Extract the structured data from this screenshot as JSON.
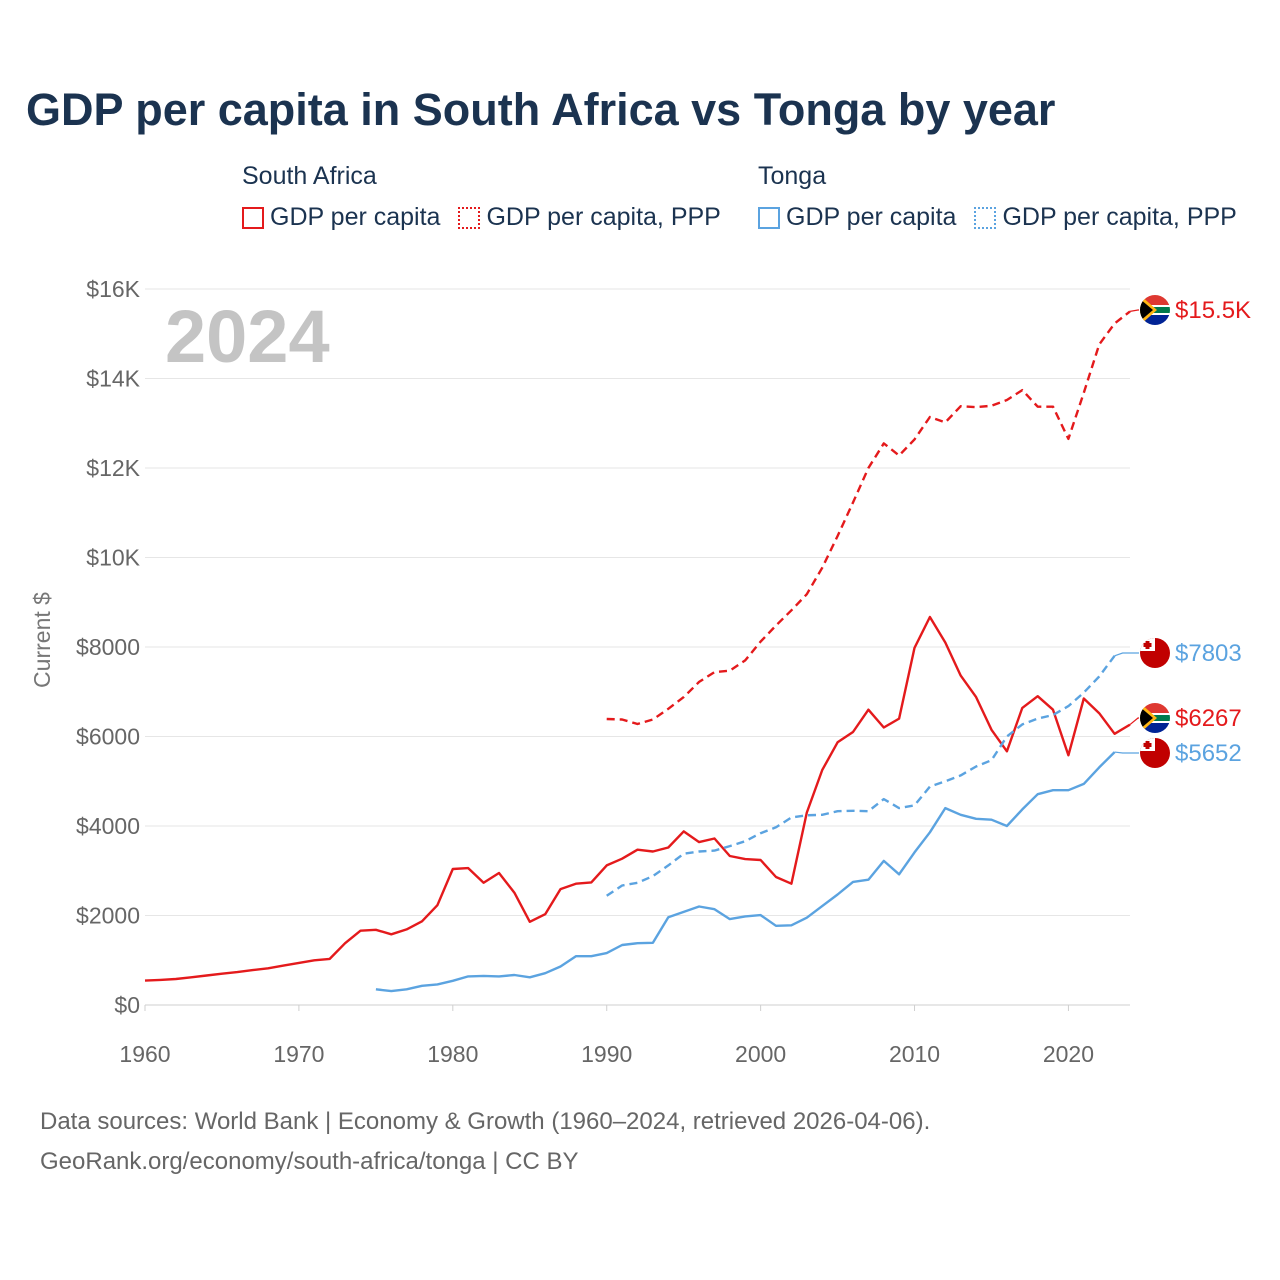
{
  "chart_data": {
    "type": "line",
    "title": "GDP per capita in South Africa vs Tonga by year",
    "ylabel": "Current $",
    "xlabel": "",
    "xlim": [
      1960,
      2024
    ],
    "ylim": [
      0,
      16000
    ],
    "year_label": "2024",
    "x_ticks": [
      {
        "value": 1960,
        "label": "1960"
      },
      {
        "value": 1970,
        "label": "1970"
      },
      {
        "value": 1980,
        "label": "1980"
      },
      {
        "value": 1990,
        "label": "1990"
      },
      {
        "value": 2000,
        "label": "2000"
      },
      {
        "value": 2010,
        "label": "2010"
      },
      {
        "value": 2020,
        "label": "2020"
      }
    ],
    "y_ticks": [
      {
        "value": 0,
        "label": "$0"
      },
      {
        "value": 2000,
        "label": "$2000"
      },
      {
        "value": 4000,
        "label": "$4000"
      },
      {
        "value": 6000,
        "label": "$6000"
      },
      {
        "value": 8000,
        "label": "$8000"
      },
      {
        "value": 10000,
        "label": "$10K"
      },
      {
        "value": 12000,
        "label": "$12K"
      },
      {
        "value": 14000,
        "label": "$14K"
      },
      {
        "value": 16000,
        "label": "$16K"
      }
    ],
    "legend": {
      "groups": [
        {
          "title": "South Africa",
          "items": [
            {
              "label": "GDP per capita",
              "style": "solid",
              "color": "#e41a1c"
            },
            {
              "label": "GDP per capita, PPP",
              "style": "dotted",
              "color": "#e41a1c"
            }
          ]
        },
        {
          "title": "Tonga",
          "items": [
            {
              "label": "GDP per capita",
              "style": "solid",
              "color": "#5ba3e0"
            },
            {
              "label": "GDP per capita, PPP",
              "style": "dotted",
              "color": "#5ba3e0"
            }
          ]
        }
      ]
    },
    "series": [
      {
        "name": "South Africa GDP per capita",
        "country": "South Africa",
        "flag": "south-africa",
        "color": "#e41a1c",
        "dash": false,
        "end_label": "$6267",
        "x": [
          1960,
          1961,
          1962,
          1963,
          1964,
          1965,
          1966,
          1967,
          1968,
          1969,
          1970,
          1971,
          1972,
          1973,
          1974,
          1975,
          1976,
          1977,
          1978,
          1979,
          1980,
          1981,
          1982,
          1983,
          1984,
          1985,
          1986,
          1987,
          1988,
          1989,
          1990,
          1991,
          1992,
          1993,
          1994,
          1995,
          1996,
          1997,
          1998,
          1999,
          2000,
          2001,
          2002,
          2003,
          2004,
          2005,
          2006,
          2007,
          2008,
          2009,
          2010,
          2011,
          2012,
          2013,
          2014,
          2015,
          2016,
          2017,
          2018,
          2019,
          2020,
          2021,
          2022,
          2023,
          2024
        ],
        "values": [
          545,
          560,
          580,
          620,
          660,
          700,
          735,
          780,
          820,
          880,
          940,
          1000,
          1030,
          1380,
          1660,
          1680,
          1580,
          1690,
          1870,
          2230,
          3040,
          3060,
          2730,
          2950,
          2510,
          1860,
          2030,
          2590,
          2710,
          2740,
          3120,
          3270,
          3470,
          3430,
          3520,
          3880,
          3640,
          3720,
          3330,
          3260,
          3240,
          2860,
          2710,
          4300,
          5250,
          5870,
          6100,
          6600,
          6200,
          6400,
          7980,
          8670,
          8100,
          7360,
          6880,
          6150,
          5670,
          6640,
          6900,
          6600,
          5580,
          6850,
          6520,
          6060,
          6267
        ]
      },
      {
        "name": "South Africa GDP per capita, PPP",
        "country": "South Africa",
        "flag": "south-africa",
        "color": "#e41a1c",
        "dash": true,
        "end_label": "$15.5K",
        "x": [
          1990,
          1991,
          1992,
          1993,
          1994,
          1995,
          1996,
          1997,
          1998,
          1999,
          2000,
          2001,
          2002,
          2003,
          2004,
          2005,
          2006,
          2007,
          2008,
          2009,
          2010,
          2011,
          2012,
          2013,
          2014,
          2015,
          2016,
          2017,
          2018,
          2019,
          2020,
          2021,
          2022,
          2023,
          2024
        ],
        "values": [
          6390,
          6380,
          6280,
          6380,
          6620,
          6880,
          7220,
          7440,
          7470,
          7700,
          8120,
          8480,
          8820,
          9180,
          9770,
          10480,
          11230,
          12000,
          12550,
          12280,
          12640,
          13140,
          13020,
          13380,
          13360,
          13390,
          13520,
          13740,
          13370,
          13370,
          12650,
          13680,
          14760,
          15230,
          15500
        ]
      },
      {
        "name": "Tonga GDP per capita",
        "country": "Tonga",
        "flag": "tonga",
        "color": "#5ba3e0",
        "dash": false,
        "end_label": "$5652",
        "x": [
          1975,
          1976,
          1977,
          1978,
          1979,
          1980,
          1981,
          1982,
          1983,
          1984,
          1985,
          1986,
          1987,
          1988,
          1989,
          1990,
          1991,
          1992,
          1993,
          1994,
          1995,
          1996,
          1997,
          1998,
          1999,
          2000,
          2001,
          2002,
          2003,
          2004,
          2005,
          2006,
          2007,
          2008,
          2009,
          2010,
          2011,
          2012,
          2013,
          2014,
          2015,
          2016,
          2017,
          2018,
          2019,
          2020,
          2021,
          2022,
          2023
        ],
        "values": [
          350,
          310,
          350,
          430,
          460,
          540,
          640,
          650,
          640,
          670,
          620,
          710,
          860,
          1090,
          1090,
          1160,
          1340,
          1380,
          1390,
          1960,
          2080,
          2200,
          2140,
          1920,
          1980,
          2010,
          1770,
          1780,
          1950,
          2210,
          2470,
          2750,
          2800,
          3220,
          2920,
          3410,
          3860,
          4400,
          4250,
          4160,
          4140,
          4000,
          4370,
          4710,
          4800,
          4800,
          4940,
          5310,
          5652
        ]
      },
      {
        "name": "Tonga GDP per capita, PPP",
        "country": "Tonga",
        "flag": "tonga",
        "color": "#5ba3e0",
        "dash": true,
        "end_label": "$7803",
        "x": [
          1990,
          1991,
          1992,
          1993,
          1994,
          1995,
          1996,
          1997,
          1998,
          1999,
          2000,
          2001,
          2002,
          2003,
          2004,
          2005,
          2006,
          2007,
          2008,
          2009,
          2010,
          2011,
          2012,
          2013,
          2014,
          2015,
          2016,
          2017,
          2018,
          2019,
          2020,
          2021,
          2022,
          2023
        ],
        "values": [
          2440,
          2670,
          2730,
          2880,
          3120,
          3380,
          3430,
          3450,
          3550,
          3660,
          3840,
          3970,
          4190,
          4240,
          4250,
          4330,
          4340,
          4330,
          4600,
          4400,
          4460,
          4880,
          5000,
          5130,
          5330,
          5470,
          6000,
          6270,
          6400,
          6480,
          6680,
          6980,
          7340,
          7803
        ]
      }
    ]
  },
  "footer": {
    "line1": "Data sources: World Bank | Economy & Growth (1960–2024, retrieved 2026-04-06).",
    "line2": "GeoRank.org/economy/south-africa/tonga | CC BY"
  }
}
